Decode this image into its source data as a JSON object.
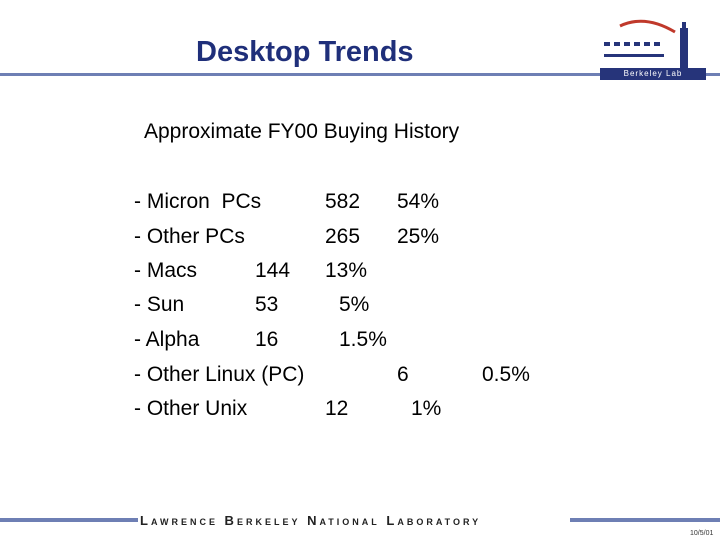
{
  "title": "Desktop Trends",
  "subtitle": "Approximate FY00 Buying History",
  "items": [
    {
      "label": "- Micron  PCs",
      "count": "582",
      "percent": "54%"
    },
    {
      "label": "- Other PCs",
      "count": "265",
      "percent": "25%"
    },
    {
      "label": "- Macs",
      "count": "144",
      "percent": "13%"
    },
    {
      "label": "- Sun",
      "count": "53",
      "percent": "5%"
    },
    {
      "label": "- Alpha",
      "count": "16",
      "percent": "1.5%"
    },
    {
      "label": "- Other Linux (PC)",
      "count": "6",
      "percent": "0.5%"
    },
    {
      "label": "- Other Unix",
      "count": "12",
      "percent": "1%"
    }
  ],
  "logo_text": "Berkeley Lab",
  "footer": "Lawrence Berkeley National Laboratory",
  "date": "10/5/01"
}
